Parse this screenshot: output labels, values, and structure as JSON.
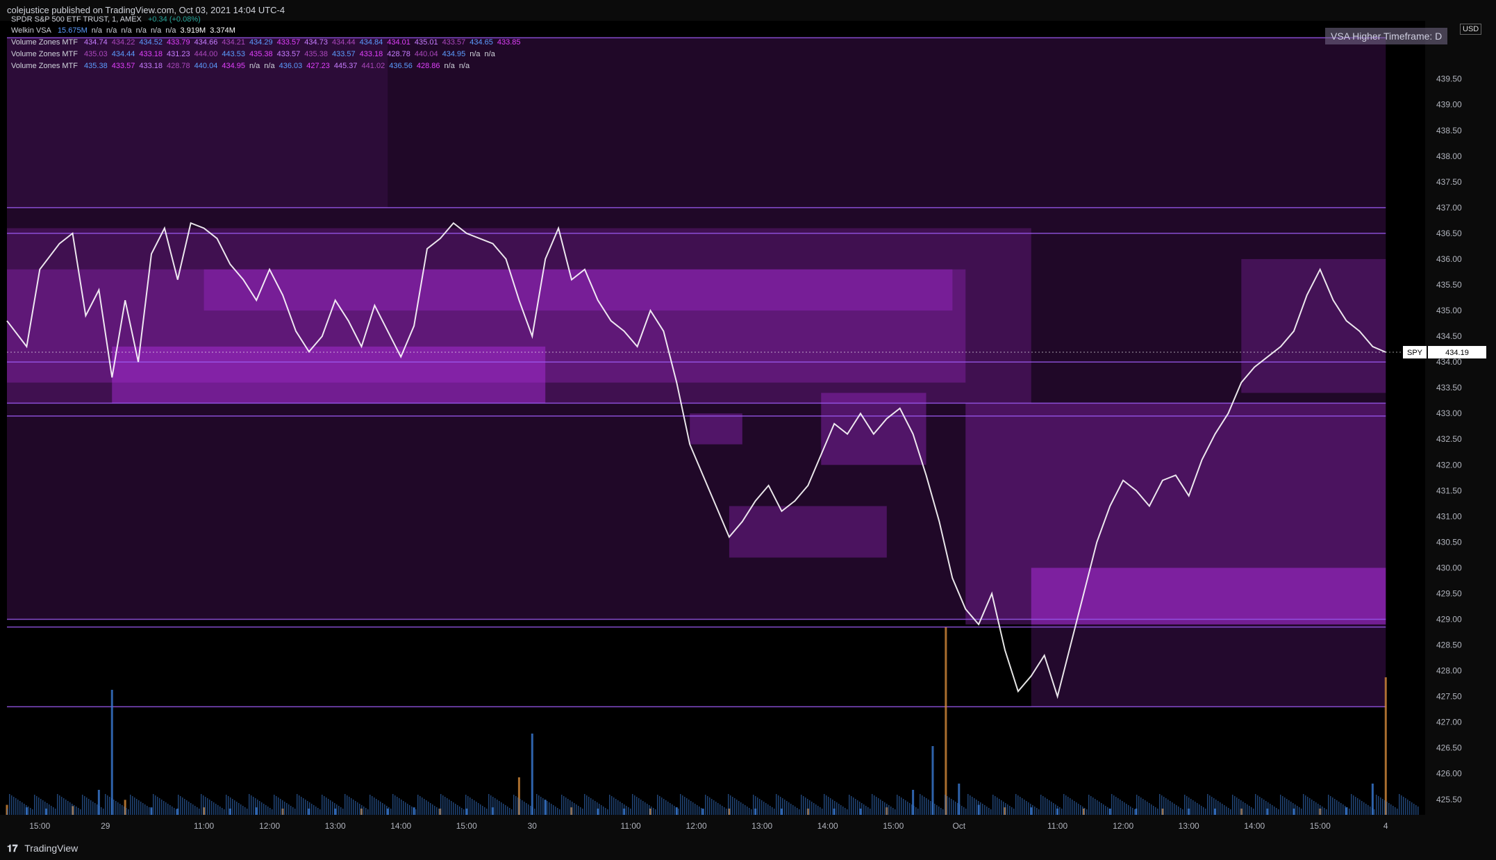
{
  "header": {
    "text": "colejustice published on TradingView.com, Oct 03, 2021 14:04 UTC-4"
  },
  "footer": {
    "brand": "TradingView"
  },
  "legend": {
    "symbol_line": {
      "name": "SPDR S&P 500 ETF TRUST, 1, AMEX",
      "change": "+0.34 (+0.08%)"
    },
    "welkin": {
      "name": "Welkin VSA",
      "values": [
        "15.675M",
        "n/a",
        "n/a",
        "n/a",
        "n/a",
        "n/a",
        "n/a",
        "3.919M",
        "3.374M"
      ]
    },
    "vz1": {
      "name": "Volume Zones MTF",
      "values": [
        "434.74",
        "434.22",
        "434.52",
        "433.79",
        "434.66",
        "434.21",
        "434.29",
        "433.57",
        "434.73",
        "434.44",
        "434.84",
        "434.01",
        "435.01",
        "433.57",
        "434.65",
        "433.85"
      ]
    },
    "vz2": {
      "name": "Volume Zones MTF",
      "values": [
        "435.03",
        "434.44",
        "433.18",
        "431.23",
        "444.00",
        "443.53",
        "435.38",
        "433.57",
        "435.38",
        "433.57",
        "433.18",
        "428.78",
        "440.04",
        "434.95",
        "n/a",
        "n/a"
      ]
    },
    "vz3": {
      "name": "Volume Zones MTF",
      "values": [
        "435.38",
        "433.57",
        "433.18",
        "428.78",
        "440.04",
        "434.95",
        "n/a",
        "n/a",
        "436.03",
        "427.23",
        "445.37",
        "441.02",
        "436.56",
        "428.86",
        "n/a",
        "n/a"
      ]
    }
  },
  "badges": {
    "vsa": "VSA Higher Timeframe: D",
    "currency": "USD",
    "symbol_tag": "SPY",
    "last_price": "434.19"
  },
  "colors": {
    "background": "#000000",
    "zone": "#b02ee0",
    "zone_line": "#9b59f0",
    "price_line": "#ffffff",
    "volume_blue": "#3a7bd5",
    "volume_orange": "#d58a3a"
  },
  "chart_data": {
    "type": "line",
    "title": "",
    "ylim": [
      425.2,
      440.4
    ],
    "y_ticks": [
      "439.50",
      "439.00",
      "438.50",
      "438.00",
      "437.50",
      "437.00",
      "436.50",
      "436.00",
      "435.50",
      "435.00",
      "434.50",
      "434.00",
      "433.50",
      "433.00",
      "432.50",
      "432.00",
      "431.50",
      "431.00",
      "430.50",
      "430.00",
      "429.50",
      "429.00",
      "428.50",
      "428.00",
      "427.50",
      "427.00",
      "426.50",
      "426.00",
      "425.50"
    ],
    "x_ticks": [
      {
        "label": "15:00",
        "x": 0.5
      },
      {
        "label": "29",
        "x": 1.5
      },
      {
        "label": "11:00",
        "x": 3.0
      },
      {
        "label": "12:00",
        "x": 4.0
      },
      {
        "label": "13:00",
        "x": 5.0
      },
      {
        "label": "14:00",
        "x": 6.0
      },
      {
        "label": "15:00",
        "x": 7.0
      },
      {
        "label": "30",
        "x": 8.0
      },
      {
        "label": "11:00",
        "x": 9.5
      },
      {
        "label": "12:00",
        "x": 10.5
      },
      {
        "label": "13:00",
        "x": 11.5
      },
      {
        "label": "14:00",
        "x": 12.5
      },
      {
        "label": "15:00",
        "x": 13.5
      },
      {
        "label": "Oct",
        "x": 14.5
      },
      {
        "label": "11:00",
        "x": 16.0
      },
      {
        "label": "12:00",
        "x": 17.0
      },
      {
        "label": "13:00",
        "x": 18.0
      },
      {
        "label": "14:00",
        "x": 19.0
      },
      {
        "label": "15:00",
        "x": 20.0
      },
      {
        "label": "4",
        "x": 21.0
      }
    ],
    "xlim": [
      0,
      21.6
    ],
    "price": [
      [
        0.0,
        434.8
      ],
      [
        0.3,
        434.3
      ],
      [
        0.5,
        435.8
      ],
      [
        0.8,
        436.3
      ],
      [
        1.0,
        436.5
      ],
      [
        1.2,
        434.9
      ],
      [
        1.4,
        435.4
      ],
      [
        1.6,
        433.7
      ],
      [
        1.8,
        435.2
      ],
      [
        2.0,
        434.0
      ],
      [
        2.2,
        436.1
      ],
      [
        2.4,
        436.6
      ],
      [
        2.6,
        435.6
      ],
      [
        2.8,
        436.7
      ],
      [
        3.0,
        436.6
      ],
      [
        3.2,
        436.4
      ],
      [
        3.4,
        435.9
      ],
      [
        3.6,
        435.6
      ],
      [
        3.8,
        435.2
      ],
      [
        4.0,
        435.8
      ],
      [
        4.2,
        435.3
      ],
      [
        4.4,
        434.6
      ],
      [
        4.6,
        434.2
      ],
      [
        4.8,
        434.5
      ],
      [
        5.0,
        435.2
      ],
      [
        5.2,
        434.8
      ],
      [
        5.4,
        434.3
      ],
      [
        5.6,
        435.1
      ],
      [
        5.8,
        434.6
      ],
      [
        6.0,
        434.1
      ],
      [
        6.2,
        434.7
      ],
      [
        6.4,
        436.2
      ],
      [
        6.6,
        436.4
      ],
      [
        6.8,
        436.7
      ],
      [
        7.0,
        436.5
      ],
      [
        7.2,
        436.4
      ],
      [
        7.4,
        436.3
      ],
      [
        7.6,
        436.0
      ],
      [
        7.8,
        435.2
      ],
      [
        8.0,
        434.5
      ],
      [
        8.2,
        436.0
      ],
      [
        8.4,
        436.6
      ],
      [
        8.6,
        435.6
      ],
      [
        8.8,
        435.8
      ],
      [
        9.0,
        435.2
      ],
      [
        9.2,
        434.8
      ],
      [
        9.4,
        434.6
      ],
      [
        9.6,
        434.3
      ],
      [
        9.8,
        435.0
      ],
      [
        10.0,
        434.6
      ],
      [
        10.2,
        433.6
      ],
      [
        10.4,
        432.4
      ],
      [
        10.6,
        431.8
      ],
      [
        10.8,
        431.2
      ],
      [
        11.0,
        430.6
      ],
      [
        11.2,
        430.9
      ],
      [
        11.4,
        431.3
      ],
      [
        11.6,
        431.6
      ],
      [
        11.8,
        431.1
      ],
      [
        12.0,
        431.3
      ],
      [
        12.2,
        431.6
      ],
      [
        12.4,
        432.2
      ],
      [
        12.6,
        432.8
      ],
      [
        12.8,
        432.6
      ],
      [
        13.0,
        433.0
      ],
      [
        13.2,
        432.6
      ],
      [
        13.4,
        432.9
      ],
      [
        13.6,
        433.1
      ],
      [
        13.8,
        432.6
      ],
      [
        14.0,
        431.8
      ],
      [
        14.2,
        430.9
      ],
      [
        14.4,
        429.8
      ],
      [
        14.6,
        429.2
      ],
      [
        14.8,
        428.9
      ],
      [
        15.0,
        429.5
      ],
      [
        15.2,
        428.4
      ],
      [
        15.4,
        427.6
      ],
      [
        15.6,
        427.9
      ],
      [
        15.8,
        428.3
      ],
      [
        16.0,
        427.5
      ],
      [
        16.2,
        428.5
      ],
      [
        16.4,
        429.5
      ],
      [
        16.6,
        430.5
      ],
      [
        16.8,
        431.2
      ],
      [
        17.0,
        431.7
      ],
      [
        17.2,
        431.5
      ],
      [
        17.4,
        431.2
      ],
      [
        17.6,
        431.7
      ],
      [
        17.8,
        431.8
      ],
      [
        18.0,
        431.4
      ],
      [
        18.2,
        432.1
      ],
      [
        18.4,
        432.6
      ],
      [
        18.6,
        433.0
      ],
      [
        18.8,
        433.6
      ],
      [
        19.0,
        433.9
      ],
      [
        19.2,
        434.1
      ],
      [
        19.4,
        434.3
      ],
      [
        19.6,
        434.6
      ],
      [
        19.8,
        435.3
      ],
      [
        20.0,
        435.8
      ],
      [
        20.2,
        435.2
      ],
      [
        20.4,
        434.8
      ],
      [
        20.6,
        434.6
      ],
      [
        20.8,
        434.3
      ],
      [
        21.0,
        434.19
      ]
    ],
    "zones": [
      {
        "x0": 0.0,
        "x1": 21.0,
        "y0": 429.0,
        "y1": 437.0,
        "opacity": 0.18
      },
      {
        "x0": 0.0,
        "x1": 5.8,
        "y0": 437.0,
        "y1": 440.3,
        "opacity": 0.25
      },
      {
        "x0": 5.8,
        "x1": 21.0,
        "y0": 437.0,
        "y1": 440.3,
        "opacity": 0.18
      },
      {
        "x0": 0.0,
        "x1": 15.6,
        "y0": 433.2,
        "y1": 436.6,
        "opacity": 0.22
      },
      {
        "x0": 0.0,
        "x1": 14.6,
        "y0": 433.6,
        "y1": 435.8,
        "opacity": 0.28
      },
      {
        "x0": 1.6,
        "x1": 8.2,
        "y0": 433.2,
        "y1": 434.3,
        "opacity": 0.45
      },
      {
        "x0": 3.0,
        "x1": 14.4,
        "y0": 435.0,
        "y1": 435.8,
        "opacity": 0.3
      },
      {
        "x0": 14.6,
        "x1": 21.0,
        "y0": 428.9,
        "y1": 433.2,
        "opacity": 0.3
      },
      {
        "x0": 15.6,
        "x1": 21.0,
        "y0": 428.9,
        "y1": 430.0,
        "opacity": 0.5
      },
      {
        "x0": 15.6,
        "x1": 21.0,
        "y0": 427.3,
        "y1": 428.9,
        "opacity": 0.2
      },
      {
        "x0": 18.8,
        "x1": 21.0,
        "y0": 433.4,
        "y1": 436.0,
        "opacity": 0.25
      },
      {
        "x0": 10.4,
        "x1": 11.2,
        "y0": 432.4,
        "y1": 433.0,
        "opacity": 0.35
      },
      {
        "x0": 11.0,
        "x1": 13.4,
        "y0": 430.2,
        "y1": 431.2,
        "opacity": 0.3
      },
      {
        "x0": 12.4,
        "x1": 14.0,
        "y0": 432.0,
        "y1": 433.4,
        "opacity": 0.35
      }
    ],
    "zone_lines": [
      440.3,
      437.0,
      433.2,
      432.95,
      429.0,
      428.85,
      427.3,
      434.0,
      436.5
    ],
    "volume": [
      [
        0.0,
        0.08
      ],
      [
        0.3,
        0.06
      ],
      [
        0.6,
        0.05
      ],
      [
        1.0,
        0.07
      ],
      [
        1.4,
        0.2
      ],
      [
        1.6,
        1.0
      ],
      [
        1.8,
        0.12
      ],
      [
        2.2,
        0.06
      ],
      [
        2.6,
        0.05
      ],
      [
        3.0,
        0.06
      ],
      [
        3.4,
        0.05
      ],
      [
        3.8,
        0.06
      ],
      [
        4.2,
        0.05
      ],
      [
        4.6,
        0.05
      ],
      [
        5.0,
        0.05
      ],
      [
        5.4,
        0.05
      ],
      [
        5.8,
        0.05
      ],
      [
        6.2,
        0.06
      ],
      [
        6.6,
        0.05
      ],
      [
        7.0,
        0.05
      ],
      [
        7.4,
        0.06
      ],
      [
        7.8,
        0.3
      ],
      [
        8.0,
        0.65
      ],
      [
        8.2,
        0.12
      ],
      [
        8.6,
        0.06
      ],
      [
        9.0,
        0.05
      ],
      [
        9.4,
        0.05
      ],
      [
        9.8,
        0.05
      ],
      [
        10.2,
        0.06
      ],
      [
        10.6,
        0.05
      ],
      [
        11.0,
        0.05
      ],
      [
        11.4,
        0.05
      ],
      [
        11.8,
        0.05
      ],
      [
        12.2,
        0.05
      ],
      [
        12.6,
        0.05
      ],
      [
        13.0,
        0.05
      ],
      [
        13.4,
        0.06
      ],
      [
        13.8,
        0.2
      ],
      [
        14.1,
        0.55
      ],
      [
        14.3,
        1.5
      ],
      [
        14.5,
        0.25
      ],
      [
        14.8,
        0.08
      ],
      [
        15.2,
        0.06
      ],
      [
        15.6,
        0.06
      ],
      [
        16.0,
        0.05
      ],
      [
        16.4,
        0.05
      ],
      [
        16.8,
        0.05
      ],
      [
        17.2,
        0.05
      ],
      [
        17.6,
        0.05
      ],
      [
        18.0,
        0.05
      ],
      [
        18.4,
        0.05
      ],
      [
        18.8,
        0.05
      ],
      [
        19.2,
        0.05
      ],
      [
        19.6,
        0.05
      ],
      [
        20.0,
        0.05
      ],
      [
        20.4,
        0.06
      ],
      [
        20.8,
        0.25
      ],
      [
        21.0,
        1.1
      ]
    ]
  }
}
